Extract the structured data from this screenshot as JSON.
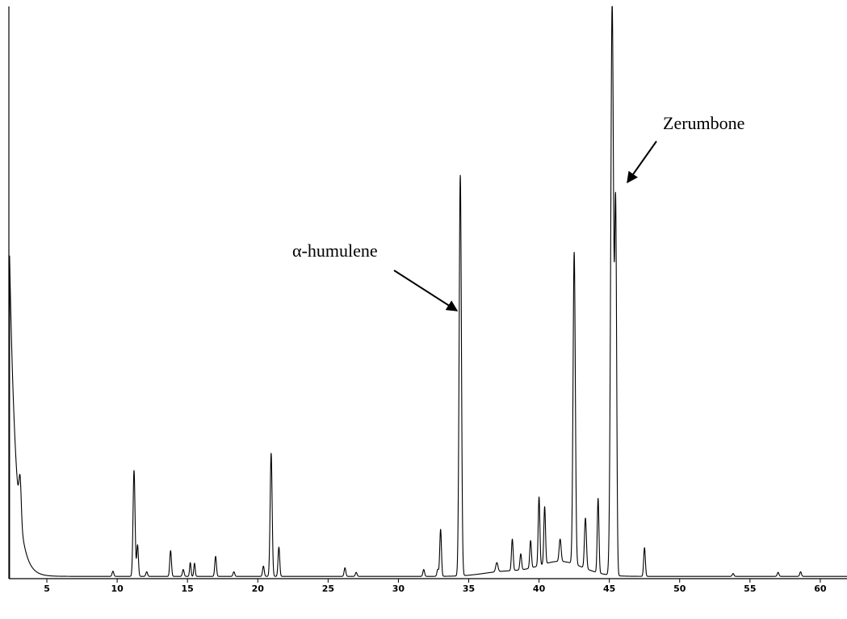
{
  "chart_data": {
    "type": "line",
    "title": "",
    "xlabel": "",
    "ylabel": "",
    "xlim": [
      2.3,
      61.9
    ],
    "ylim": [
      0,
      100
    ],
    "grid": false,
    "legend": "none",
    "x_ticks": [
      5,
      10,
      15,
      20,
      25,
      30,
      35,
      40,
      45,
      50,
      55,
      60
    ],
    "baseline": 0.4,
    "solvent_front": {
      "x": 2.35,
      "y": 56
    },
    "peaks": [
      {
        "x": 3.1,
        "y": 7.0,
        "w": 0.08
      },
      {
        "x": 9.7,
        "y": 0.9,
        "w": 0.06
      },
      {
        "x": 11.2,
        "y": 18.5,
        "w": 0.07
      },
      {
        "x": 11.45,
        "y": 5.5,
        "w": 0.06
      },
      {
        "x": 12.1,
        "y": 0.8,
        "w": 0.06
      },
      {
        "x": 13.8,
        "y": 4.5,
        "w": 0.06
      },
      {
        "x": 14.7,
        "y": 1.2,
        "w": 0.06
      },
      {
        "x": 15.2,
        "y": 2.4,
        "w": 0.05
      },
      {
        "x": 15.5,
        "y": 2.3,
        "w": 0.05
      },
      {
        "x": 17.0,
        "y": 3.5,
        "w": 0.06
      },
      {
        "x": 18.3,
        "y": 0.8,
        "w": 0.06
      },
      {
        "x": 20.4,
        "y": 1.8,
        "w": 0.06
      },
      {
        "x": 20.95,
        "y": 21.5,
        "w": 0.07
      },
      {
        "x": 21.5,
        "y": 5.1,
        "w": 0.06
      },
      {
        "x": 26.2,
        "y": 1.5,
        "w": 0.06
      },
      {
        "x": 27.0,
        "y": 0.7,
        "w": 0.06
      },
      {
        "x": 31.8,
        "y": 1.2,
        "w": 0.06
      },
      {
        "x": 32.8,
        "y": 1.2,
        "w": 0.06
      },
      {
        "x": 33.0,
        "y": 8.2,
        "w": 0.06
      },
      {
        "x": 34.4,
        "y": 70.0,
        "w": 0.08
      },
      {
        "x": 37.0,
        "y": 1.6,
        "w": 0.08
      },
      {
        "x": 38.1,
        "y": 5.5,
        "w": 0.06
      },
      {
        "x": 38.7,
        "y": 2.8,
        "w": 0.06
      },
      {
        "x": 39.4,
        "y": 4.8,
        "w": 0.06
      },
      {
        "x": 40.0,
        "y": 12.0,
        "w": 0.06
      },
      {
        "x": 40.4,
        "y": 10.0,
        "w": 0.06
      },
      {
        "x": 41.5,
        "y": 3.9,
        "w": 0.07
      },
      {
        "x": 42.5,
        "y": 54.5,
        "w": 0.08
      },
      {
        "x": 43.3,
        "y": 8.8,
        "w": 0.07
      },
      {
        "x": 44.2,
        "y": 13.0,
        "w": 0.06
      },
      {
        "x": 45.2,
        "y": 100.0,
        "w": 0.1
      },
      {
        "x": 45.45,
        "y": 62.0,
        "w": 0.07
      },
      {
        "x": 47.5,
        "y": 5.0,
        "w": 0.06
      },
      {
        "x": 53.8,
        "y": 0.5,
        "w": 0.06
      },
      {
        "x": 57.0,
        "y": 0.7,
        "w": 0.06
      },
      {
        "x": 58.6,
        "y": 0.8,
        "w": 0.06
      }
    ],
    "humps": [
      {
        "x": 41.5,
        "y": 2.6,
        "w": 1.6
      },
      {
        "x": 37.5,
        "y": 0.8,
        "w": 1.5
      }
    ],
    "annotations": [
      {
        "text": "α-humulene",
        "x": 34.4,
        "y": 46.0
      },
      {
        "text": "Zerumbone",
        "x": 45.35,
        "y": 70.0
      }
    ]
  }
}
